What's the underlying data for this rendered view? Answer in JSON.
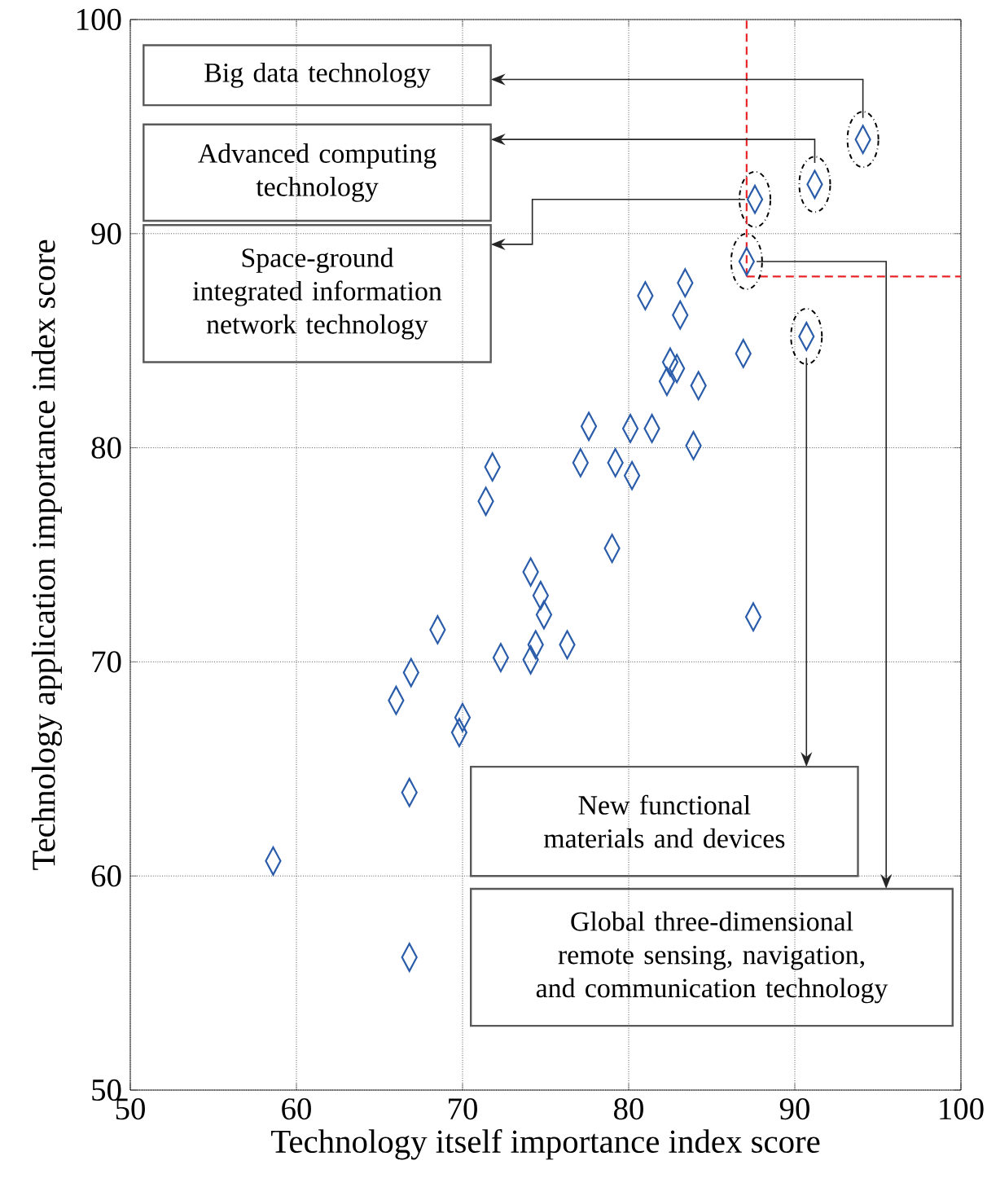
{
  "chart_data": {
    "type": "scatter",
    "xlabel": "Technology itself importance index score",
    "ylabel": "Technology application importance index score",
    "xlim": [
      50,
      100
    ],
    "ylim": [
      50,
      100
    ],
    "xticks": [
      50,
      60,
      70,
      80,
      90,
      100
    ],
    "yticks": [
      50,
      60,
      70,
      80,
      90,
      100
    ],
    "grid": true,
    "marker": "diamond",
    "color": "#2a5caa",
    "x": [
      58.6,
      66.8,
      66.8,
      66.0,
      66.9,
      68.5,
      69.8,
      70.0,
      71.4,
      71.8,
      72.3,
      74.1,
      74.7,
      74.9,
      74.4,
      74.1,
      76.3,
      79.0,
      77.1,
      77.6,
      79.2,
      80.2,
      80.1,
      81.4,
      81.0,
      82.3,
      82.5,
      82.9,
      83.1,
      83.4,
      84.2,
      83.9,
      86.9,
      87.5,
      87.1,
      87.6,
      91.2,
      94.1,
      90.7
    ],
    "values": [
      60.7,
      56.2,
      63.9,
      68.2,
      69.5,
      71.5,
      66.7,
      67.4,
      77.5,
      79.1,
      70.2,
      74.2,
      73.1,
      72.2,
      70.8,
      70.1,
      70.8,
      75.3,
      79.3,
      81.0,
      79.3,
      78.7,
      80.9,
      80.9,
      87.1,
      83.1,
      84.0,
      83.7,
      86.2,
      87.7,
      82.9,
      80.1,
      84.4,
      72.1,
      88.7,
      91.6,
      92.3,
      94.4,
      85.2
    ],
    "ref_lines": [
      {
        "axis": "x",
        "value": 87.1,
        "color": "#e8262a",
        "line_style": "dashed"
      },
      {
        "axis": "y",
        "value": 88,
        "color": "#e8262a",
        "line_style": "dashed"
      }
    ],
    "annotations": [
      "Big data technology",
      "Advanced computing technology",
      "Space-ground integrated information network technology",
      "New functional materials and devices",
      "Global three-dimensional remote sensing, navigation, and communication technology"
    ]
  }
}
